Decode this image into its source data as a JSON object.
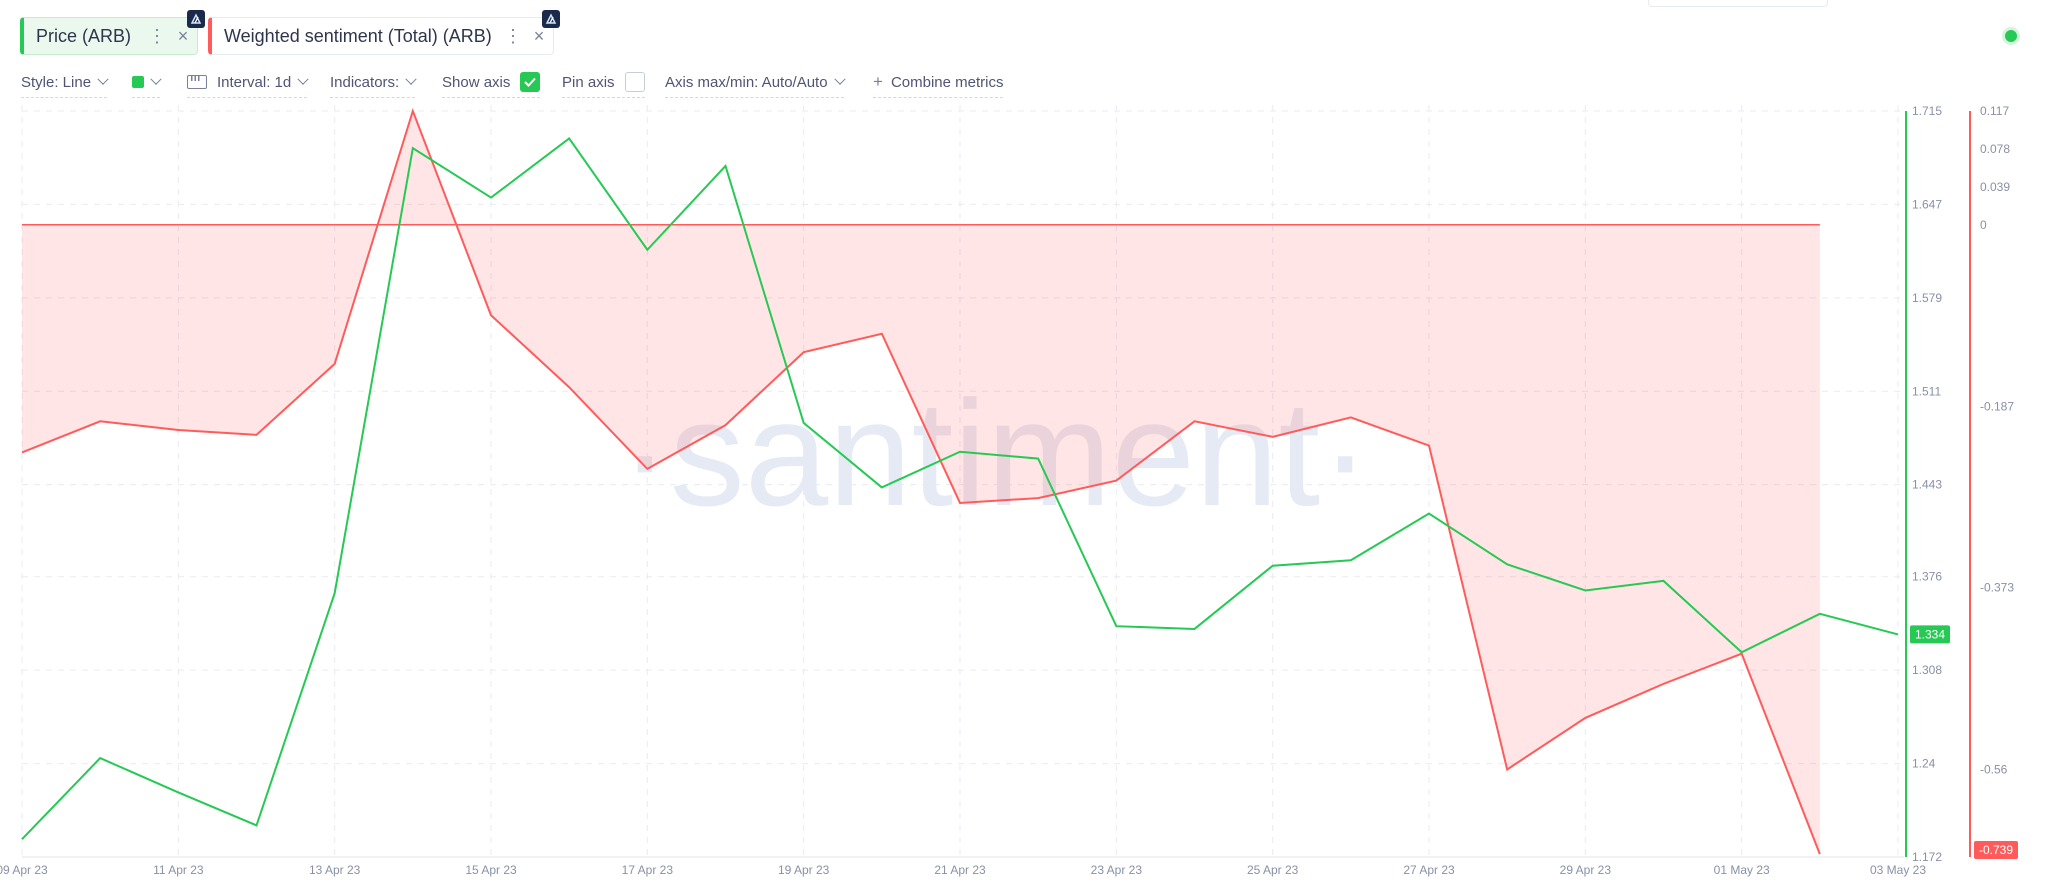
{
  "metrics": [
    {
      "label": "Price (ARB)",
      "color": "#26c953",
      "more_icon": "more-vertical-icon",
      "close_icon": "close-icon",
      "close_glyph": "×",
      "more_glyph": "⋮"
    },
    {
      "label": "Weighted sentiment (Total) (ARB)",
      "color": "#ff5b5b",
      "more_icon": "more-vertical-icon",
      "close_icon": "close-icon",
      "close_glyph": "×",
      "more_glyph": "⋮"
    }
  ],
  "toolbar": {
    "style_label": "Style: Line",
    "interval_label": "Interval: 1d",
    "indicators_label": "Indicators:",
    "show_axis_label": "Show axis",
    "show_axis_checked": true,
    "pin_axis_label": "Pin axis",
    "pin_axis_checked": false,
    "axis_minmax_label": "Axis max/min: Auto/Auto",
    "combine_label": "Combine metrics",
    "plus_glyph": "+"
  },
  "watermark": "·santiment·",
  "chart_data": {
    "type": "line",
    "x": [
      "09 Apr 23",
      "10 Apr 23",
      "11 Apr 23",
      "12 Apr 23",
      "13 Apr 23",
      "14 Apr 23",
      "15 Apr 23",
      "16 Apr 23",
      "17 Apr 23",
      "18 Apr 23",
      "19 Apr 23",
      "20 Apr 23",
      "21 Apr 23",
      "22 Apr 23",
      "23 Apr 23",
      "24 Apr 23",
      "25 Apr 23",
      "26 Apr 23",
      "27 Apr 23",
      "28 Apr 23",
      "29 Apr 23",
      "30 Apr 23",
      "01 May 23",
      "02 May 23",
      "03 May 23"
    ],
    "x_tick_labels": [
      "09 Apr 23",
      "11 Apr 23",
      "13 Apr 23",
      "15 Apr 23",
      "17 Apr 23",
      "19 Apr 23",
      "21 Apr 23",
      "23 Apr 23",
      "25 Apr 23",
      "27 Apr 23",
      "29 Apr 23",
      "01 May 23",
      "03 May 23"
    ],
    "series": [
      {
        "name": "Price (ARB)",
        "color": "#26c953",
        "axis": "left",
        "values": [
          1.185,
          1.244,
          1.219,
          1.195,
          1.364,
          1.688,
          1.652,
          1.695,
          1.614,
          1.675,
          1.488,
          1.441,
          1.467,
          1.462,
          1.34,
          1.338,
          1.384,
          1.388,
          1.422,
          1.385,
          1.366,
          1.373,
          1.321,
          1.349,
          1.334
        ]
      },
      {
        "name": "Weighted sentiment (Total) (ARB)",
        "color": "#ff5b5b",
        "axis": "right",
        "fill": "baseline",
        "values": [
          -0.234,
          -0.202,
          -0.211,
          -0.216,
          -0.143,
          0.117,
          -0.093,
          -0.167,
          -0.251,
          -0.206,
          -0.131,
          -0.112,
          -0.286,
          -0.281,
          -0.263,
          -0.202,
          -0.218,
          -0.198,
          -0.227,
          -0.56,
          -0.507,
          -0.472,
          -0.441,
          -0.647,
          null
        ]
      }
    ],
    "y_left": {
      "ticks": [
        "1.715",
        "1.647",
        "1.579",
        "1.511",
        "1.443",
        "1.376",
        "1.308",
        "1.24",
        "1.172"
      ],
      "range": [
        1.172,
        1.715
      ]
    },
    "y_right": {
      "ticks": [
        "0.117",
        "0.078",
        "0.039",
        "0",
        "-0.187",
        "-0.373",
        "-0.56"
      ],
      "range": [
        -0.65,
        0.117
      ],
      "baseline": 0
    },
    "last_value_labels": {
      "price": "1.334",
      "sentiment": "-0.739"
    },
    "grid": true
  }
}
